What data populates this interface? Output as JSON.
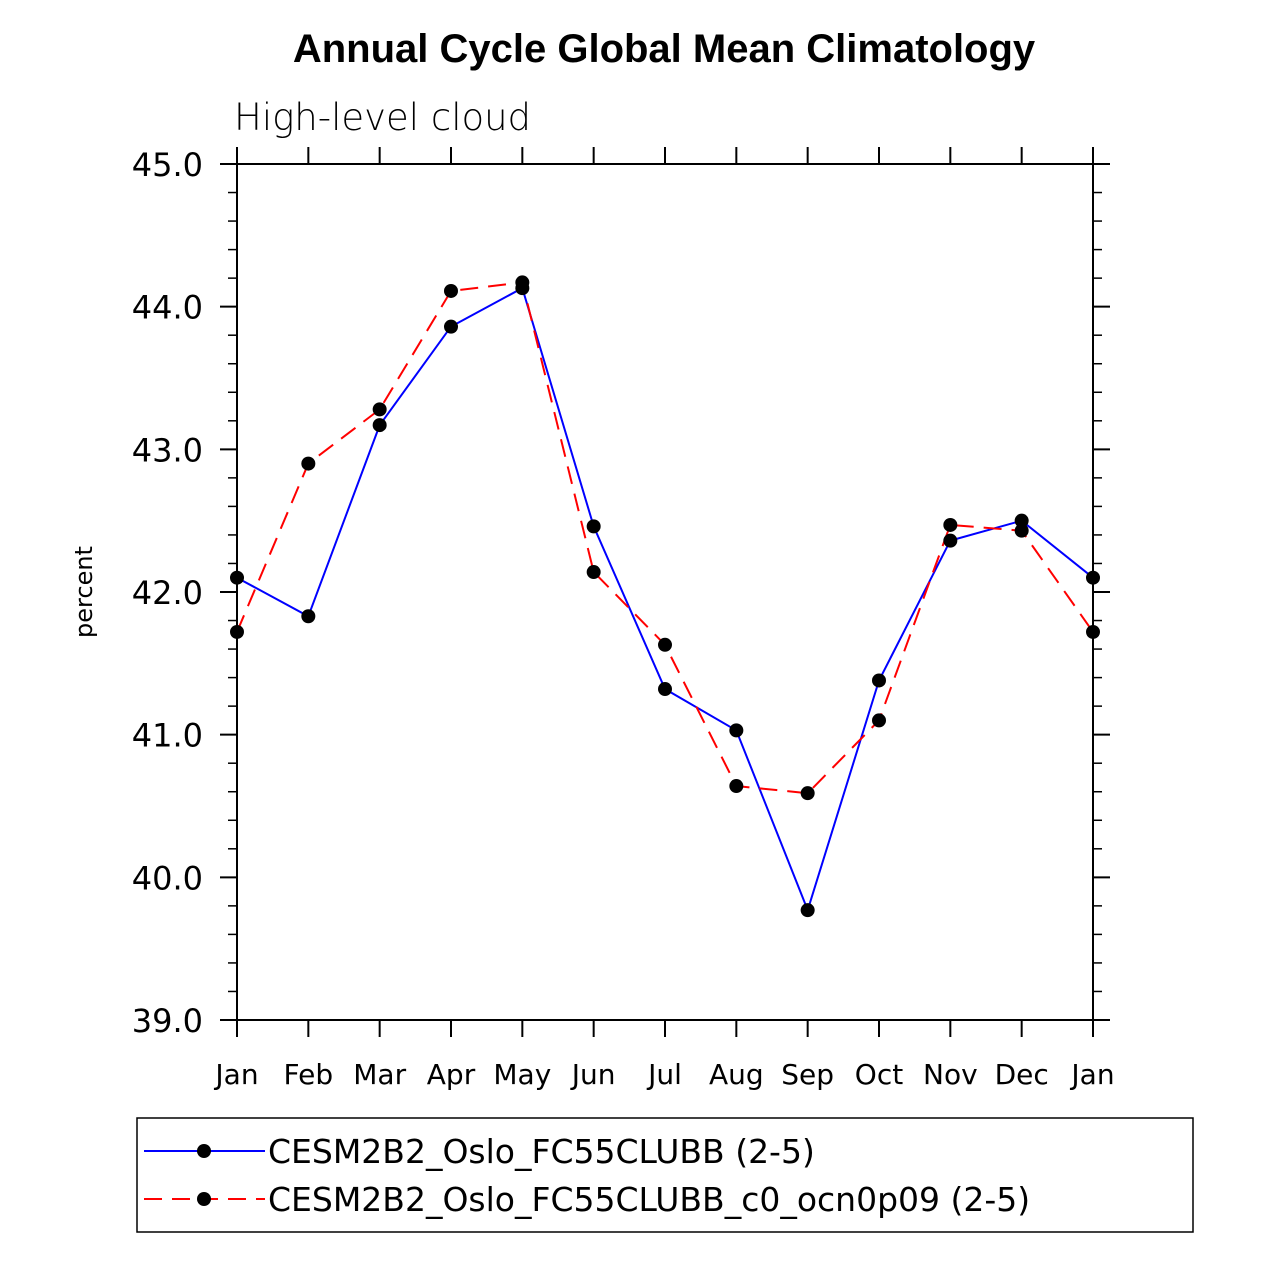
{
  "chart_data": {
    "type": "line",
    "title": "Annual Cycle Global Mean Climatology",
    "subtitle": "High-level cloud",
    "ylabel": "percent",
    "xlabel": "",
    "ylim": [
      39.0,
      45.0
    ],
    "yticks": [
      "39.0",
      "40.0",
      "41.0",
      "42.0",
      "43.0",
      "44.0",
      "45.0"
    ],
    "categories": [
      "Jan",
      "Feb",
      "Mar",
      "Apr",
      "May",
      "Jun",
      "Jul",
      "Aug",
      "Sep",
      "Oct",
      "Nov",
      "Dec",
      "Jan"
    ],
    "series": [
      {
        "name": "CESM2B2_Oslo_FC55CLUBB (2-5)",
        "color": "#0000ff",
        "style": "solid",
        "values": [
          42.1,
          41.83,
          43.17,
          43.86,
          44.13,
          42.46,
          41.32,
          41.03,
          39.77,
          41.38,
          42.36,
          42.5,
          42.1
        ]
      },
      {
        "name": "CESM2B2_Oslo_FC55CLUBB_c0_ocn0p09 (2-5)",
        "color": "#ff0000",
        "style": "dashed",
        "values": [
          41.72,
          42.9,
          43.28,
          44.11,
          44.17,
          42.14,
          41.63,
          40.64,
          40.59,
          41.1,
          42.47,
          42.43,
          41.72
        ]
      }
    ],
    "marker_color": "#000000"
  }
}
